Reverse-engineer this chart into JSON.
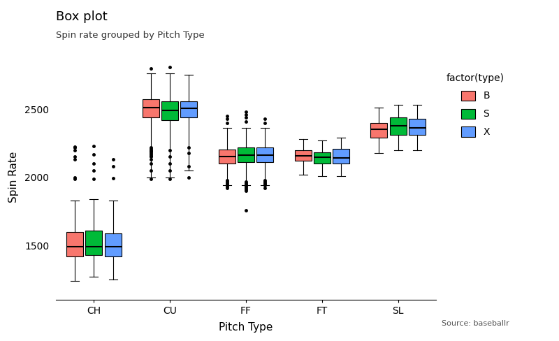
{
  "title": "Box plot",
  "subtitle": "Spin rate grouped by Pitch Type",
  "xlabel": "Pitch Type",
  "ylabel": "Spin Rate",
  "source": "Source: baseballr",
  "pitch_types": [
    "CH",
    "CU",
    "FF",
    "FT",
    "SL"
  ],
  "types": [
    "B",
    "S",
    "X"
  ],
  "colors": {
    "B": "#F8766D",
    "S": "#00BA38",
    "X": "#619CFF"
  },
  "box_data": {
    "CH": {
      "B": {
        "q1": 1420,
        "median": 1490,
        "q3": 1600,
        "whislo": 1240,
        "whishi": 1830,
        "fliers": [
          1990,
          2000,
          2130,
          2150,
          2200,
          2220,
          2225
        ]
      },
      "S": {
        "q1": 1430,
        "median": 1490,
        "q3": 1610,
        "whislo": 1270,
        "whishi": 1840,
        "fliers": [
          1990,
          2050,
          2100,
          2170,
          2230
        ]
      },
      "X": {
        "q1": 1420,
        "median": 1490,
        "q3": 1590,
        "whislo": 1250,
        "whishi": 1830,
        "fliers": [
          1995,
          2080,
          2130
        ]
      }
    },
    "CU": {
      "B": {
        "q1": 2440,
        "median": 2510,
        "q3": 2570,
        "whislo": 2000,
        "whishi": 2760,
        "fliers": [
          1990,
          2050,
          2100,
          2130,
          2150,
          2160,
          2170,
          2180,
          2190,
          2195,
          2200,
          2210,
          2220,
          2800
        ]
      },
      "S": {
        "q1": 2420,
        "median": 2490,
        "q3": 2555,
        "whislo": 2000,
        "whishi": 2760,
        "fliers": [
          1990,
          2050,
          2100,
          2150,
          2200,
          2810
        ]
      },
      "X": {
        "q1": 2440,
        "median": 2505,
        "q3": 2555,
        "whislo": 2050,
        "whishi": 2750,
        "fliers": [
          2000,
          2080,
          2180,
          2220
        ]
      }
    },
    "FF": {
      "B": {
        "q1": 2100,
        "median": 2150,
        "q3": 2205,
        "whislo": 1940,
        "whishi": 2360,
        "fliers": [
          1920,
          1930,
          1940,
          1950,
          1960,
          1970,
          1980,
          2400,
          2430,
          2450
        ]
      },
      "S": {
        "q1": 2110,
        "median": 2165,
        "q3": 2220,
        "whislo": 1940,
        "whishi": 2360,
        "fliers": [
          1900,
          1910,
          1920,
          1930,
          1940,
          1950,
          1960,
          1970,
          1760,
          2410,
          2440,
          2460,
          2480
        ]
      },
      "X": {
        "q1": 2110,
        "median": 2165,
        "q3": 2220,
        "whislo": 1940,
        "whishi": 2360,
        "fliers": [
          1920,
          1940,
          1950,
          1960,
          1970,
          1980,
          2400,
          2430
        ]
      }
    },
    "FT": {
      "B": {
        "q1": 2120,
        "median": 2160,
        "q3": 2200,
        "whislo": 2020,
        "whishi": 2280,
        "fliers": []
      },
      "S": {
        "q1": 2100,
        "median": 2145,
        "q3": 2185,
        "whislo": 2010,
        "whishi": 2270,
        "fliers": []
      },
      "X": {
        "q1": 2100,
        "median": 2140,
        "q3": 2210,
        "whislo": 2010,
        "whishi": 2290,
        "fliers": []
      }
    },
    "SL": {
      "B": {
        "q1": 2290,
        "median": 2350,
        "q3": 2400,
        "whislo": 2180,
        "whishi": 2510,
        "fliers": []
      },
      "S": {
        "q1": 2310,
        "median": 2380,
        "q3": 2440,
        "whislo": 2200,
        "whishi": 2530,
        "fliers": []
      },
      "X": {
        "q1": 2310,
        "median": 2365,
        "q3": 2430,
        "whislo": 2200,
        "whishi": 2530,
        "fliers": []
      }
    }
  },
  "ylim": [
    1100,
    2900
  ],
  "yticks": [
    1500,
    2000,
    2500
  ],
  "background_color": "#ffffff",
  "box_width": 0.22,
  "offsets": [
    -0.25,
    0.0,
    0.25
  ]
}
